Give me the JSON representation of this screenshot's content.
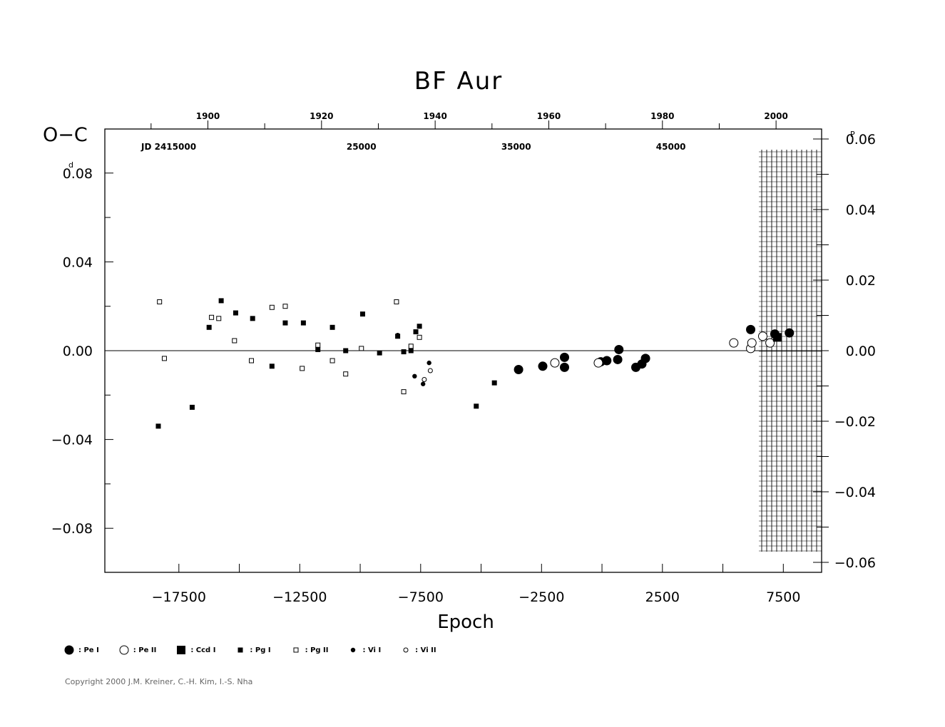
{
  "chart_data": {
    "type": "scatter",
    "title": "BF Aur",
    "xlabel": "Epoch",
    "ylabel_left": "O−C",
    "ylabel_left_unit": "d",
    "ylabel_right_unit": "P",
    "jd_label": "JD 2415000",
    "xlim": [
      -19500,
      9500
    ],
    "ylim_left": [
      -0.1,
      0.1
    ],
    "ylim_right": [
      -0.06,
      0.06
    ],
    "x_ticks": [
      {
        "value": -17500,
        "label": "−17500"
      },
      {
        "value": -12500,
        "label": "−12500"
      },
      {
        "value": -7500,
        "label": "−7500"
      },
      {
        "value": -2500,
        "label": "−2500"
      },
      {
        "value": 2500,
        "label": "2500"
      },
      {
        "value": 7500,
        "label": "7500"
      }
    ],
    "y_ticks_left": [
      {
        "value": 0.08,
        "label": "0.08"
      },
      {
        "value": 0.04,
        "label": "0.04"
      },
      {
        "value": 0.0,
        "label": "0.00"
      },
      {
        "value": -0.04,
        "label": "−0.04"
      },
      {
        "value": -0.08,
        "label": "−0.08"
      }
    ],
    "y_ticks_right": [
      {
        "value": 0.06,
        "label": "0.06"
      },
      {
        "value": 0.04,
        "label": "0.04"
      },
      {
        "value": 0.02,
        "label": "0.02"
      },
      {
        "value": 0.0,
        "label": "0.00"
      },
      {
        "value": -0.02,
        "label": "−0.02"
      },
      {
        "value": -0.04,
        "label": "−0.04"
      },
      {
        "value": -0.06,
        "label": "−0.06"
      }
    ],
    "top_year_ticks": [
      {
        "label": "1900",
        "epoch": -16300
      },
      {
        "label": "1920",
        "epoch": -11600
      },
      {
        "label": "1940",
        "epoch": -6900
      },
      {
        "label": "1960",
        "epoch": -2200
      },
      {
        "label": "1980",
        "epoch": 2500
      },
      {
        "label": "2000",
        "epoch": 7200
      }
    ],
    "top_jd_labels": [
      {
        "label": "25000",
        "epoch": -9950
      },
      {
        "label": "35000",
        "epoch": -3550
      },
      {
        "label": "45000",
        "epoch": 2850
      }
    ],
    "series": [
      {
        "name": "Pe I",
        "symbol": "circle-filled-large",
        "points": [
          [
            -3450,
            -0.0085
          ],
          [
            -2450,
            -0.007
          ],
          [
            -1550,
            -0.003
          ],
          [
            -1550,
            -0.0075
          ],
          [
            -50,
            -0.005
          ],
          [
            200,
            -0.0045
          ],
          [
            650,
            -0.004
          ],
          [
            700,
            0.0005
          ],
          [
            1400,
            -0.0075
          ],
          [
            1650,
            -0.006
          ],
          [
            1800,
            -0.0035
          ],
          [
            6150,
            0.0095
          ],
          [
            7150,
            0.0075
          ],
          [
            7750,
            0.008
          ]
        ]
      },
      {
        "name": "Pe II",
        "symbol": "circle-open-large",
        "points": [
          [
            -1950,
            -0.0055
          ],
          [
            -150,
            -0.0055
          ],
          [
            5450,
            0.0035
          ],
          [
            6150,
            0.001
          ],
          [
            6200,
            0.0035
          ],
          [
            6650,
            0.0065
          ],
          [
            6950,
            0.0035
          ]
        ]
      },
      {
        "name": "Ccd I",
        "symbol": "square-filled-large",
        "points": [
          [
            7250,
            0.006
          ]
        ]
      },
      {
        "name": "Pg I",
        "symbol": "square-filled-small",
        "points": [
          [
            -18350,
            -0.034
          ],
          [
            -16950,
            -0.0255
          ],
          [
            -16250,
            0.0105
          ],
          [
            -15750,
            0.0225
          ],
          [
            -15150,
            0.017
          ],
          [
            -14450,
            0.0145
          ],
          [
            -13650,
            -0.007
          ],
          [
            -13100,
            0.0125
          ],
          [
            -12350,
            0.0125
          ],
          [
            -11750,
            0.0005
          ],
          [
            -11150,
            0.0105
          ],
          [
            -10600,
            0.0
          ],
          [
            -9900,
            0.0165
          ],
          [
            -9200,
            -0.001
          ],
          [
            -8450,
            0.0065
          ],
          [
            -8200,
            -0.0005
          ],
          [
            -7900,
            0.0
          ],
          [
            -7700,
            0.0085
          ],
          [
            -7550,
            0.011
          ],
          [
            -5200,
            -0.025
          ],
          [
            -4450,
            -0.0145
          ]
        ]
      },
      {
        "name": "Pg II",
        "symbol": "square-open-small",
        "points": [
          [
            -18300,
            0.022
          ],
          [
            -18100,
            -0.0035
          ],
          [
            -16150,
            0.015
          ],
          [
            -15850,
            0.0145
          ],
          [
            -15200,
            0.0045
          ],
          [
            -14500,
            -0.0045
          ],
          [
            -13650,
            0.0195
          ],
          [
            -13100,
            0.02
          ],
          [
            -12400,
            -0.008
          ],
          [
            -11750,
            0.0025
          ],
          [
            -11150,
            -0.0045
          ],
          [
            -10600,
            -0.0105
          ],
          [
            -9950,
            0.001
          ],
          [
            -8500,
            0.022
          ],
          [
            -8200,
            -0.0185
          ],
          [
            -7900,
            0.002
          ],
          [
            -7550,
            0.006
          ]
        ]
      },
      {
        "name": "Vi I",
        "symbol": "circle-filled-small",
        "points": [
          [
            -8450,
            0.007
          ],
          [
            -7750,
            -0.0115
          ],
          [
            -7400,
            -0.015
          ],
          [
            -7150,
            -0.0055
          ]
        ]
      },
      {
        "name": "Vi II",
        "symbol": "circle-open-small",
        "points": [
          [
            -7350,
            -0.013
          ],
          [
            -7100,
            -0.009
          ]
        ]
      }
    ]
  },
  "copyright": "Copyright 2000 J.M. Kreiner, C.-H. Kim, I.-S. Nha"
}
